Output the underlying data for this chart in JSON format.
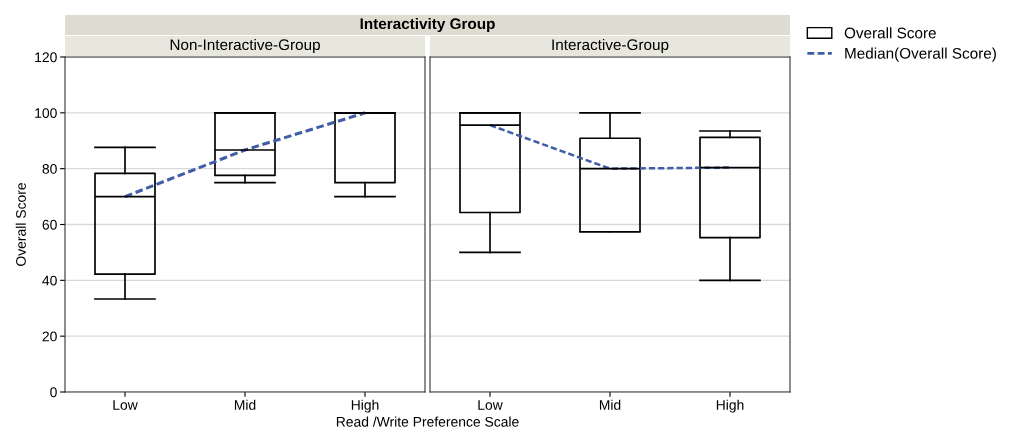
{
  "chart_data": [
    {
      "type": "box",
      "title": "Interactivity Group",
      "subtitle": "Non-Interactive-Group",
      "xlabel": "Read /Write Preference Scale",
      "ylabel": "Overall Score",
      "categories": [
        "Low",
        "Mid",
        "High"
      ],
      "ylim": [
        0,
        120
      ],
      "yticks": [
        0,
        20,
        40,
        60,
        80,
        100,
        120
      ],
      "grid": "y",
      "series": [
        {
          "color": "#000000",
          "boxes": [
            {
              "low": 33.3,
              "q1": 42.2,
              "median": 70,
              "q3": 78.3,
              "high": 87.6
            },
            {
              "low": 75,
              "q1": 77.6,
              "median": 86.7,
              "q3": 100,
              "high": 100
            },
            {
              "low": 70,
              "q1": 75,
              "median": 100,
              "q3": 100,
              "high": 100
            }
          ]
        },
        {
          "type": "line",
          "color": "#3f5ea6",
          "line_style": "dashed",
          "values": [
            70,
            86.7,
            100
          ]
        }
      ]
    },
    {
      "type": "box",
      "subtitle": "Interactive-Group",
      "categories": [
        "Low",
        "Mid",
        "High"
      ],
      "ylim": [
        0,
        120
      ],
      "grid": "y",
      "tick_labels": "x",
      "legend": "top right",
      "series": [
        {
          "name": "Overall Score",
          "color": "#000000",
          "boxes": [
            {
              "low": 50,
              "q1": 64.3,
              "median": 95.6,
              "q3": 100,
              "high": 100
            },
            {
              "low": 57.4,
              "q1": 57.4,
              "median": 80,
              "q3": 90.9,
              "high": 100
            },
            {
              "low": 40,
              "q1": 55.3,
              "median": 80.4,
              "q3": 91.2,
              "high": 93.5
            }
          ]
        },
        {
          "name": "Median(Overall Score)",
          "type": "line",
          "color": "#3f5ea6",
          "line_style": "dashed",
          "values": [
            95.6,
            80,
            80.4
          ]
        }
      ]
    }
  ]
}
